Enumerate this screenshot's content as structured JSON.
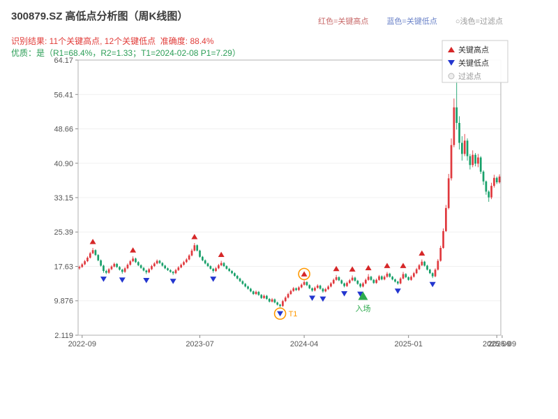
{
  "header": {
    "title": "300879.SZ 高低点分析图（周K线图）",
    "result_line": "识别结果: 11个关键高点, 12个关键低点  准确度: 88.4%",
    "result_color": "#e13c39",
    "quality_line": "优质：是（R1=68.4%，R2=1.33；T1=2024-02-08 P1=7.29）",
    "quality_color": "#2c9e57"
  },
  "top_legend": [
    {
      "label": "红色=关键高点",
      "color": "#c86a6a"
    },
    {
      "label": "蓝色=关键低点",
      "color": "#6a82c8"
    },
    {
      "label": "○浅色=过滤点",
      "color": "#999999"
    }
  ],
  "chart_data": {
    "type": "candlestick",
    "symbol": "300879.SZ",
    "interval": "weekly",
    "analysis": {
      "key_high_count": 11,
      "key_low_count": 12,
      "accuracy": "88.4%",
      "r1": "68.4%",
      "r2": "1.33",
      "t1_date": "2024-02-08",
      "p1": "7.29"
    },
    "y_ticks": [
      "64.17",
      "56.41",
      "48.66",
      "40.90",
      "33.15",
      "25.39",
      "17.63",
      "9.876",
      "2.119"
    ],
    "x_ticks": [
      {
        "label": "2022-09",
        "i": 1
      },
      {
        "label": "2023-07",
        "i": 45
      },
      {
        "label": "2024-04",
        "i": 84
      },
      {
        "label": "2025-01",
        "i": 123
      },
      {
        "label": "2025-09",
        "i": 156
      },
      {
        "label": "2025-09",
        "i": 158
      }
    ],
    "legend": [
      {
        "label": "关键高点",
        "marker": "triangle-up",
        "color": "#d62728",
        "muted": false
      },
      {
        "label": "关键低点",
        "marker": "triangle-down",
        "color": "#2336cf",
        "muted": false
      },
      {
        "label": "过滤点",
        "marker": "circle",
        "color": "#bbbbbb",
        "muted": true
      }
    ],
    "candles": [
      [
        17.2,
        17.8,
        16.9,
        17.5
      ],
      [
        17.5,
        18.4,
        17.3,
        18.1
      ],
      [
        18.1,
        19.1,
        17.9,
        18.8
      ],
      [
        18.8,
        19.9,
        18.6,
        19.6
      ],
      [
        19.6,
        20.9,
        19.4,
        20.6
      ],
      [
        20.6,
        21.8,
        20.4,
        21.3
      ],
      [
        21.3,
        21.5,
        20.0,
        20.2
      ],
      [
        20.2,
        20.4,
        18.8,
        19.0
      ],
      [
        19.0,
        19.2,
        17.6,
        17.8
      ],
      [
        17.8,
        18.0,
        16.2,
        16.6
      ],
      [
        16.6,
        16.9,
        15.9,
        16.2
      ],
      [
        16.2,
        17.3,
        16.0,
        17.0
      ],
      [
        17.0,
        17.9,
        16.8,
        17.6
      ],
      [
        17.6,
        18.5,
        17.4,
        18.2
      ],
      [
        18.2,
        18.4,
        17.3,
        17.5
      ],
      [
        17.5,
        17.7,
        16.7,
        16.9
      ],
      [
        16.9,
        17.1,
        16.0,
        16.4
      ],
      [
        16.4,
        17.5,
        16.2,
        17.2
      ],
      [
        17.2,
        18.3,
        17.0,
        18.0
      ],
      [
        18.0,
        19.1,
        17.8,
        18.8
      ],
      [
        18.8,
        19.9,
        18.6,
        19.4
      ],
      [
        19.4,
        19.6,
        18.4,
        18.6
      ],
      [
        18.6,
        18.8,
        17.7,
        17.9
      ],
      [
        17.9,
        18.1,
        17.1,
        17.3
      ],
      [
        17.3,
        17.5,
        16.5,
        16.7
      ],
      [
        16.7,
        16.9,
        15.9,
        16.3
      ],
      [
        16.3,
        17.3,
        16.1,
        17.0
      ],
      [
        17.0,
        18.0,
        16.8,
        17.7
      ],
      [
        17.7,
        18.6,
        17.5,
        18.3
      ],
      [
        18.3,
        19.2,
        18.1,
        18.9
      ],
      [
        18.9,
        19.1,
        18.2,
        18.4
      ],
      [
        18.4,
        18.6,
        17.6,
        17.8
      ],
      [
        17.8,
        18.0,
        17.0,
        17.2
      ],
      [
        17.2,
        17.4,
        16.6,
        16.8
      ],
      [
        16.8,
        17.0,
        16.2,
        16.4
      ],
      [
        16.4,
        16.6,
        15.7,
        16.1
      ],
      [
        16.1,
        17.1,
        15.9,
        16.8
      ],
      [
        16.8,
        17.7,
        16.6,
        17.4
      ],
      [
        17.4,
        18.3,
        17.2,
        18.0
      ],
      [
        18.0,
        18.9,
        17.8,
        18.6
      ],
      [
        18.6,
        19.5,
        18.4,
        19.2
      ],
      [
        19.2,
        20.4,
        19.0,
        20.1
      ],
      [
        20.1,
        21.6,
        19.9,
        21.2
      ],
      [
        21.2,
        22.9,
        21.0,
        22.4
      ],
      [
        22.4,
        22.6,
        21.0,
        21.2
      ],
      [
        21.2,
        21.4,
        19.6,
        19.8
      ],
      [
        19.8,
        20.0,
        18.8,
        19.0
      ],
      [
        19.0,
        19.2,
        18.1,
        18.3
      ],
      [
        18.3,
        18.5,
        17.5,
        17.7
      ],
      [
        17.7,
        17.9,
        16.9,
        17.1
      ],
      [
        17.1,
        17.3,
        16.2,
        16.6
      ],
      [
        16.6,
        17.5,
        16.4,
        17.2
      ],
      [
        17.2,
        18.2,
        17.0,
        17.9
      ],
      [
        17.9,
        18.9,
        17.7,
        18.4
      ],
      [
        18.4,
        18.6,
        17.5,
        17.7
      ],
      [
        17.7,
        17.9,
        16.9,
        17.1
      ],
      [
        17.1,
        17.3,
        16.4,
        16.6
      ],
      [
        16.6,
        16.8,
        15.9,
        16.1
      ],
      [
        16.1,
        16.3,
        15.3,
        15.5
      ],
      [
        15.5,
        15.7,
        14.7,
        14.9
      ],
      [
        14.9,
        15.1,
        14.1,
        14.3
      ],
      [
        14.3,
        14.5,
        13.5,
        13.7
      ],
      [
        13.7,
        13.9,
        12.9,
        13.1
      ],
      [
        13.1,
        13.3,
        12.4,
        12.6
      ],
      [
        12.6,
        12.8,
        11.8,
        12.0
      ],
      [
        12.0,
        12.2,
        11.2,
        11.4
      ],
      [
        11.4,
        12.2,
        11.2,
        11.9
      ],
      [
        11.9,
        12.1,
        11.0,
        11.2
      ],
      [
        11.2,
        11.4,
        10.3,
        10.5
      ],
      [
        10.5,
        11.3,
        10.3,
        11.0
      ],
      [
        11.0,
        11.2,
        10.1,
        10.3
      ],
      [
        10.3,
        10.5,
        9.5,
        9.7
      ],
      [
        9.7,
        10.5,
        9.5,
        10.2
      ],
      [
        10.2,
        10.4,
        9.3,
        9.5
      ],
      [
        9.5,
        9.7,
        8.8,
        9.0
      ],
      [
        9.0,
        9.2,
        8.4,
        8.7
      ],
      [
        8.7,
        10.1,
        8.5,
        9.8
      ],
      [
        9.8,
        10.9,
        9.6,
        10.6
      ],
      [
        10.6,
        11.7,
        10.4,
        11.4
      ],
      [
        11.4,
        12.4,
        11.2,
        12.1
      ],
      [
        12.1,
        13.0,
        11.9,
        12.7
      ],
      [
        12.7,
        12.9,
        12.1,
        12.3
      ],
      [
        12.3,
        13.2,
        12.1,
        12.9
      ],
      [
        12.9,
        13.8,
        12.7,
        13.5
      ],
      [
        13.5,
        14.5,
        13.3,
        14.1
      ],
      [
        14.1,
        14.3,
        13.2,
        13.4
      ],
      [
        13.4,
        13.6,
        12.5,
        12.7
      ],
      [
        12.7,
        12.9,
        11.9,
        12.2
      ],
      [
        12.2,
        13.1,
        12.0,
        12.8
      ],
      [
        12.8,
        13.6,
        12.6,
        13.3
      ],
      [
        13.3,
        13.5,
        12.4,
        12.6
      ],
      [
        12.6,
        12.8,
        11.7,
        12.0
      ],
      [
        12.0,
        12.8,
        11.8,
        12.5
      ],
      [
        12.5,
        13.4,
        12.3,
        13.1
      ],
      [
        13.1,
        14.1,
        12.9,
        13.8
      ],
      [
        13.8,
        14.9,
        13.6,
        14.6
      ],
      [
        14.6,
        15.7,
        14.4,
        15.2
      ],
      [
        15.2,
        15.4,
        14.3,
        14.5
      ],
      [
        14.5,
        14.7,
        13.6,
        13.8
      ],
      [
        13.8,
        14.0,
        12.9,
        13.2
      ],
      [
        13.2,
        14.2,
        13.0,
        13.9
      ],
      [
        13.9,
        14.8,
        13.7,
        14.5
      ],
      [
        14.5,
        15.6,
        14.3,
        15.1
      ],
      [
        15.1,
        15.3,
        14.2,
        14.4
      ],
      [
        14.4,
        14.6,
        13.5,
        13.7
      ],
      [
        13.7,
        13.9,
        12.8,
        13.1
      ],
      [
        13.1,
        14.1,
        12.9,
        13.8
      ],
      [
        13.8,
        14.9,
        13.6,
        14.6
      ],
      [
        14.6,
        15.9,
        14.4,
        15.3
      ],
      [
        15.3,
        15.5,
        14.4,
        14.6
      ],
      [
        14.6,
        14.8,
        13.7,
        13.9
      ],
      [
        13.9,
        14.9,
        13.7,
        14.6
      ],
      [
        14.6,
        15.7,
        14.4,
        15.4
      ],
      [
        15.4,
        15.6,
        14.5,
        14.7
      ],
      [
        14.7,
        15.6,
        14.5,
        15.3
      ],
      [
        15.3,
        16.4,
        15.1,
        16.0
      ],
      [
        16.0,
        16.2,
        15.1,
        15.3
      ],
      [
        15.3,
        15.5,
        14.5,
        14.7
      ],
      [
        14.7,
        14.9,
        14.0,
        14.2
      ],
      [
        14.2,
        14.4,
        13.5,
        13.8
      ],
      [
        13.8,
        15.2,
        13.6,
        14.9
      ],
      [
        14.9,
        16.4,
        14.7,
        15.9
      ],
      [
        15.9,
        16.1,
        15.0,
        15.2
      ],
      [
        15.2,
        15.4,
        14.4,
        14.6
      ],
      [
        14.6,
        15.6,
        14.4,
        15.3
      ],
      [
        15.3,
        16.4,
        15.1,
        16.1
      ],
      [
        16.1,
        17.3,
        15.9,
        17.0
      ],
      [
        17.0,
        18.2,
        16.8,
        17.9
      ],
      [
        17.9,
        19.2,
        17.7,
        18.7
      ],
      [
        18.7,
        18.9,
        17.6,
        17.8
      ],
      [
        17.8,
        18.0,
        16.7,
        16.9
      ],
      [
        16.9,
        17.1,
        15.9,
        16.1
      ],
      [
        16.1,
        16.3,
        15.0,
        15.4
      ],
      [
        15.4,
        17.2,
        15.2,
        16.9
      ],
      [
        16.9,
        19.3,
        16.7,
        18.9
      ],
      [
        18.9,
        22.3,
        18.7,
        21.8
      ],
      [
        21.8,
        26.2,
        21.6,
        25.6
      ],
      [
        25.6,
        31.5,
        25.4,
        30.8
      ],
      [
        30.8,
        38.5,
        30.5,
        37.5
      ],
      [
        37.5,
        46.5,
        37.0,
        45.0
      ],
      [
        45.0,
        55.5,
        44.5,
        53.5
      ],
      [
        53.5,
        59.9,
        48.5,
        50.0
      ],
      [
        50.0,
        51.5,
        44.0,
        45.5
      ],
      [
        45.5,
        47.0,
        41.5,
        43.0
      ],
      [
        43.0,
        47.5,
        42.5,
        46.0
      ],
      [
        46.0,
        46.5,
        41.5,
        42.5
      ],
      [
        42.5,
        43.0,
        39.5,
        40.5
      ],
      [
        40.5,
        43.8,
        40.0,
        42.8
      ],
      [
        42.8,
        43.2,
        40.2,
        40.8
      ],
      [
        40.8,
        43.0,
        40.0,
        42.2
      ],
      [
        42.2,
        42.5,
        38.5,
        39.0
      ],
      [
        39.0,
        39.3,
        36.0,
        36.8
      ],
      [
        36.8,
        37.0,
        33.8,
        34.5
      ],
      [
        34.5,
        34.8,
        32.2,
        33.2
      ],
      [
        33.2,
        36.5,
        32.8,
        35.8
      ],
      [
        35.8,
        38.3,
        35.4,
        37.6
      ],
      [
        37.6,
        37.9,
        36.2,
        36.6
      ],
      [
        36.6,
        38.4,
        36.3,
        37.9
      ]
    ],
    "key_high_idx": [
      5,
      20,
      43,
      53,
      84,
      96,
      102,
      108,
      115,
      121,
      128
    ],
    "key_low_idx": [
      9,
      16,
      25,
      35,
      50,
      75,
      87,
      91,
      99,
      105,
      119,
      132
    ],
    "highlight_circles": [
      {
        "i": 84,
        "type": "high",
        "label": ""
      },
      {
        "i": 75,
        "type": "low",
        "label": "T1"
      }
    ],
    "entry": {
      "i": 106,
      "label": "入场"
    },
    "colors": {
      "up": "#e0393e",
      "down": "#18a06a",
      "key_high": "#d62728",
      "key_low": "#2336cf",
      "entry": "#2eaa4e",
      "highlight": "#ff9800",
      "grid": "#f0f0f0",
      "axis": "#b0b0b0",
      "tick": "#888888",
      "tick_label": "#555555",
      "legend_text": "#333333",
      "legend_muted": "#999999"
    }
  }
}
